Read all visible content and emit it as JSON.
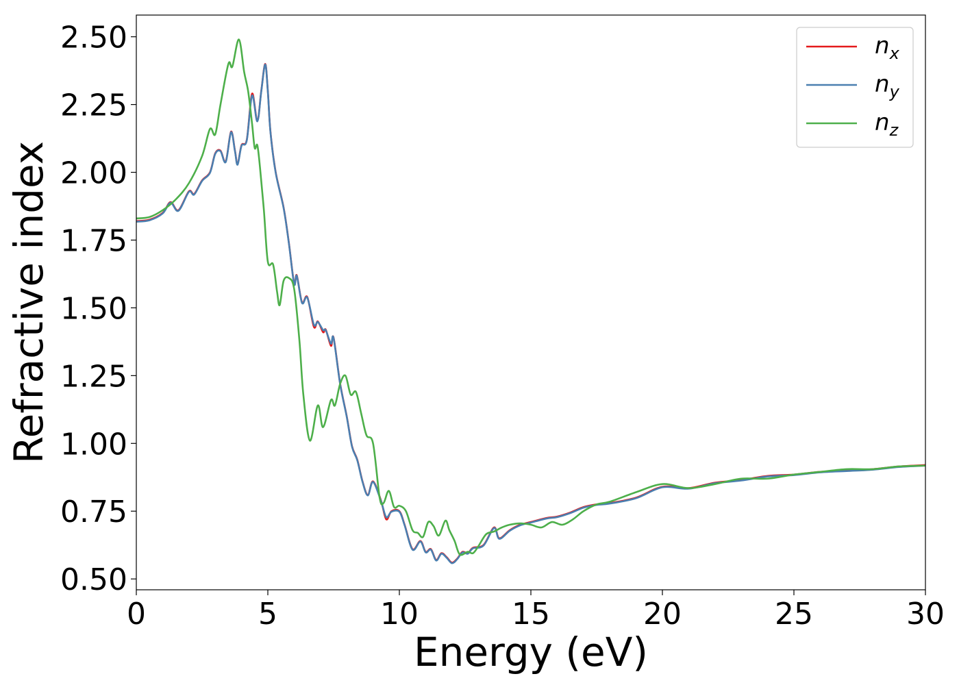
{
  "chart_data": {
    "type": "line",
    "xlabel": "Energy (eV)",
    "ylabel": "Refractive index",
    "xlim": [
      0,
      30
    ],
    "ylim": [
      0.46,
      2.58
    ],
    "xticks": [
      0,
      5,
      10,
      15,
      20,
      25,
      30
    ],
    "xtick_labels": [
      "0",
      "5",
      "10",
      "15",
      "20",
      "25",
      "30"
    ],
    "yticks": [
      0.5,
      0.75,
      1.0,
      1.25,
      1.5,
      1.75,
      2.0,
      2.25,
      2.5
    ],
    "ytick_labels": [
      "0.50",
      "0.75",
      "1.00",
      "1.25",
      "1.50",
      "1.75",
      "2.00",
      "2.25",
      "2.50"
    ],
    "grid": false,
    "legend_position": "top-right",
    "series": [
      {
        "name": "n_x",
        "label_base": "n",
        "label_sub": "x",
        "color": "#e41a1c",
        "points": [
          [
            0,
            1.82
          ],
          [
            0.5,
            1.825
          ],
          [
            1.0,
            1.85
          ],
          [
            1.3,
            1.89
          ],
          [
            1.6,
            1.86
          ],
          [
            2.0,
            1.93
          ],
          [
            2.2,
            1.92
          ],
          [
            2.5,
            1.97
          ],
          [
            2.8,
            2.0
          ],
          [
            3.0,
            2.07
          ],
          [
            3.2,
            2.08
          ],
          [
            3.4,
            2.04
          ],
          [
            3.6,
            2.15
          ],
          [
            3.75,
            2.08
          ],
          [
            3.85,
            2.03
          ],
          [
            4.0,
            2.1
          ],
          [
            4.2,
            2.12
          ],
          [
            4.4,
            2.29
          ],
          [
            4.6,
            2.19
          ],
          [
            4.75,
            2.3
          ],
          [
            4.9,
            2.4
          ],
          [
            5.0,
            2.3
          ],
          [
            5.1,
            2.15
          ],
          [
            5.3,
            2.0
          ],
          [
            5.6,
            1.87
          ],
          [
            5.8,
            1.74
          ],
          [
            6.0,
            1.59
          ],
          [
            6.1,
            1.62
          ],
          [
            6.3,
            1.52
          ],
          [
            6.5,
            1.54
          ],
          [
            6.75,
            1.43
          ],
          [
            6.9,
            1.45
          ],
          [
            7.1,
            1.41
          ],
          [
            7.2,
            1.42
          ],
          [
            7.4,
            1.36
          ],
          [
            7.5,
            1.39
          ],
          [
            7.75,
            1.22
          ],
          [
            8.0,
            1.1
          ],
          [
            8.2,
            0.99
          ],
          [
            8.4,
            0.94
          ],
          [
            8.6,
            0.86
          ],
          [
            8.8,
            0.81
          ],
          [
            9.0,
            0.86
          ],
          [
            9.3,
            0.79
          ],
          [
            9.5,
            0.72
          ],
          [
            9.7,
            0.75
          ],
          [
            10.0,
            0.75
          ],
          [
            10.2,
            0.7
          ],
          [
            10.5,
            0.61
          ],
          [
            10.8,
            0.64
          ],
          [
            11.0,
            0.6
          ],
          [
            11.2,
            0.61
          ],
          [
            11.4,
            0.57
          ],
          [
            11.6,
            0.595
          ],
          [
            11.8,
            0.58
          ],
          [
            12.0,
            0.56
          ],
          [
            12.2,
            0.575
          ],
          [
            12.4,
            0.6
          ],
          [
            12.6,
            0.595
          ],
          [
            12.8,
            0.615
          ],
          [
            13.2,
            0.625
          ],
          [
            13.6,
            0.69
          ],
          [
            13.8,
            0.65
          ],
          [
            14.2,
            0.68
          ],
          [
            14.6,
            0.7
          ],
          [
            15.0,
            0.71
          ],
          [
            15.6,
            0.725
          ],
          [
            16.0,
            0.73
          ],
          [
            16.5,
            0.745
          ],
          [
            17.0,
            0.765
          ],
          [
            17.5,
            0.775
          ],
          [
            18.0,
            0.78
          ],
          [
            19.0,
            0.8
          ],
          [
            20.0,
            0.84
          ],
          [
            21.0,
            0.835
          ],
          [
            22.0,
            0.855
          ],
          [
            23.0,
            0.865
          ],
          [
            24.0,
            0.88
          ],
          [
            25.0,
            0.885
          ],
          [
            26.0,
            0.895
          ],
          [
            27.0,
            0.9
          ],
          [
            28.0,
            0.905
          ],
          [
            29.0,
            0.915
          ],
          [
            30.0,
            0.92
          ]
        ]
      },
      {
        "name": "n_y",
        "label_base": "n",
        "label_sub": "y",
        "color": "#4a7fb0",
        "points": [
          [
            0,
            1.818
          ],
          [
            0.5,
            1.823
          ],
          [
            1.0,
            1.848
          ],
          [
            1.3,
            1.888
          ],
          [
            1.6,
            1.858
          ],
          [
            2.0,
            1.928
          ],
          [
            2.2,
            1.918
          ],
          [
            2.5,
            1.968
          ],
          [
            2.8,
            1.998
          ],
          [
            3.0,
            2.068
          ],
          [
            3.2,
            2.078
          ],
          [
            3.4,
            2.038
          ],
          [
            3.6,
            2.148
          ],
          [
            3.75,
            2.078
          ],
          [
            3.85,
            2.028
          ],
          [
            4.0,
            2.098
          ],
          [
            4.2,
            2.118
          ],
          [
            4.4,
            2.283
          ],
          [
            4.6,
            2.188
          ],
          [
            4.75,
            2.298
          ],
          [
            4.9,
            2.398
          ],
          [
            5.0,
            2.298
          ],
          [
            5.1,
            2.148
          ],
          [
            5.3,
            1.998
          ],
          [
            5.6,
            1.868
          ],
          [
            5.8,
            1.738
          ],
          [
            6.0,
            1.588
          ],
          [
            6.1,
            1.618
          ],
          [
            6.3,
            1.518
          ],
          [
            6.5,
            1.538
          ],
          [
            6.75,
            1.438
          ],
          [
            6.9,
            1.448
          ],
          [
            7.1,
            1.418
          ],
          [
            7.2,
            1.418
          ],
          [
            7.4,
            1.368
          ],
          [
            7.5,
            1.388
          ],
          [
            7.75,
            1.218
          ],
          [
            8.0,
            1.098
          ],
          [
            8.2,
            0.988
          ],
          [
            8.4,
            0.938
          ],
          [
            8.6,
            0.858
          ],
          [
            8.8,
            0.808
          ],
          [
            9.0,
            0.858
          ],
          [
            9.3,
            0.788
          ],
          [
            9.5,
            0.728
          ],
          [
            9.7,
            0.748
          ],
          [
            10.0,
            0.748
          ],
          [
            10.2,
            0.698
          ],
          [
            10.5,
            0.608
          ],
          [
            10.8,
            0.638
          ],
          [
            11.0,
            0.598
          ],
          [
            11.2,
            0.608
          ],
          [
            11.4,
            0.568
          ],
          [
            11.6,
            0.593
          ],
          [
            11.8,
            0.578
          ],
          [
            12.0,
            0.558
          ],
          [
            12.2,
            0.573
          ],
          [
            12.4,
            0.598
          ],
          [
            12.6,
            0.593
          ],
          [
            12.8,
            0.613
          ],
          [
            13.2,
            0.623
          ],
          [
            13.6,
            0.688
          ],
          [
            13.8,
            0.648
          ],
          [
            14.2,
            0.678
          ],
          [
            14.6,
            0.698
          ],
          [
            15.0,
            0.708
          ],
          [
            15.6,
            0.723
          ],
          [
            16.0,
            0.728
          ],
          [
            16.5,
            0.743
          ],
          [
            17.0,
            0.763
          ],
          [
            17.5,
            0.773
          ],
          [
            18.0,
            0.778
          ],
          [
            19.0,
            0.798
          ],
          [
            20.0,
            0.838
          ],
          [
            21.0,
            0.833
          ],
          [
            22.0,
            0.853
          ],
          [
            23.0,
            0.863
          ],
          [
            24.0,
            0.878
          ],
          [
            25.0,
            0.883
          ],
          [
            26.0,
            0.893
          ],
          [
            27.0,
            0.898
          ],
          [
            28.0,
            0.903
          ],
          [
            29.0,
            0.913
          ],
          [
            30.0,
            0.918
          ]
        ]
      },
      {
        "name": "n_z",
        "label_base": "n",
        "label_sub": "z",
        "color": "#4daf4a",
        "points": [
          [
            0,
            1.83
          ],
          [
            0.5,
            1.835
          ],
          [
            1.0,
            1.86
          ],
          [
            1.5,
            1.9
          ],
          [
            2.0,
            1.96
          ],
          [
            2.5,
            2.06
          ],
          [
            2.8,
            2.16
          ],
          [
            3.0,
            2.14
          ],
          [
            3.2,
            2.25
          ],
          [
            3.5,
            2.4
          ],
          [
            3.65,
            2.39
          ],
          [
            3.9,
            2.49
          ],
          [
            4.1,
            2.37
          ],
          [
            4.25,
            2.3
          ],
          [
            4.4,
            2.18
          ],
          [
            4.5,
            2.09
          ],
          [
            4.6,
            2.1
          ],
          [
            4.7,
            2.02
          ],
          [
            4.85,
            1.86
          ],
          [
            5.0,
            1.67
          ],
          [
            5.2,
            1.66
          ],
          [
            5.35,
            1.56
          ],
          [
            5.45,
            1.51
          ],
          [
            5.6,
            1.6
          ],
          [
            5.8,
            1.61
          ],
          [
            6.0,
            1.57
          ],
          [
            6.2,
            1.38
          ],
          [
            6.35,
            1.18
          ],
          [
            6.6,
            1.01
          ],
          [
            6.9,
            1.14
          ],
          [
            7.1,
            1.06
          ],
          [
            7.4,
            1.16
          ],
          [
            7.55,
            1.14
          ],
          [
            7.75,
            1.22
          ],
          [
            7.95,
            1.25
          ],
          [
            8.15,
            1.18
          ],
          [
            8.35,
            1.19
          ],
          [
            8.55,
            1.11
          ],
          [
            8.75,
            1.03
          ],
          [
            9.0,
            1.0
          ],
          [
            9.25,
            0.8
          ],
          [
            9.4,
            0.78
          ],
          [
            9.6,
            0.825
          ],
          [
            9.8,
            0.765
          ],
          [
            10.0,
            0.77
          ],
          [
            10.25,
            0.75
          ],
          [
            10.5,
            0.68
          ],
          [
            10.7,
            0.67
          ],
          [
            10.9,
            0.655
          ],
          [
            11.1,
            0.71
          ],
          [
            11.3,
            0.695
          ],
          [
            11.5,
            0.66
          ],
          [
            11.75,
            0.715
          ],
          [
            11.9,
            0.68
          ],
          [
            12.1,
            0.64
          ],
          [
            12.3,
            0.59
          ],
          [
            12.6,
            0.6
          ],
          [
            12.8,
            0.595
          ],
          [
            13.0,
            0.62
          ],
          [
            13.3,
            0.665
          ],
          [
            13.6,
            0.675
          ],
          [
            13.9,
            0.69
          ],
          [
            14.2,
            0.7
          ],
          [
            14.6,
            0.705
          ],
          [
            15.0,
            0.7
          ],
          [
            15.4,
            0.69
          ],
          [
            15.8,
            0.71
          ],
          [
            16.2,
            0.7
          ],
          [
            16.6,
            0.72
          ],
          [
            17.0,
            0.75
          ],
          [
            17.5,
            0.775
          ],
          [
            18.0,
            0.785
          ],
          [
            19.0,
            0.82
          ],
          [
            20.0,
            0.85
          ],
          [
            21.0,
            0.835
          ],
          [
            22.0,
            0.85
          ],
          [
            23.0,
            0.87
          ],
          [
            24.0,
            0.87
          ],
          [
            25.0,
            0.885
          ],
          [
            26.0,
            0.895
          ],
          [
            27.0,
            0.905
          ],
          [
            28.0,
            0.905
          ],
          [
            29.0,
            0.915
          ],
          [
            30.0,
            0.918
          ]
        ]
      }
    ]
  }
}
